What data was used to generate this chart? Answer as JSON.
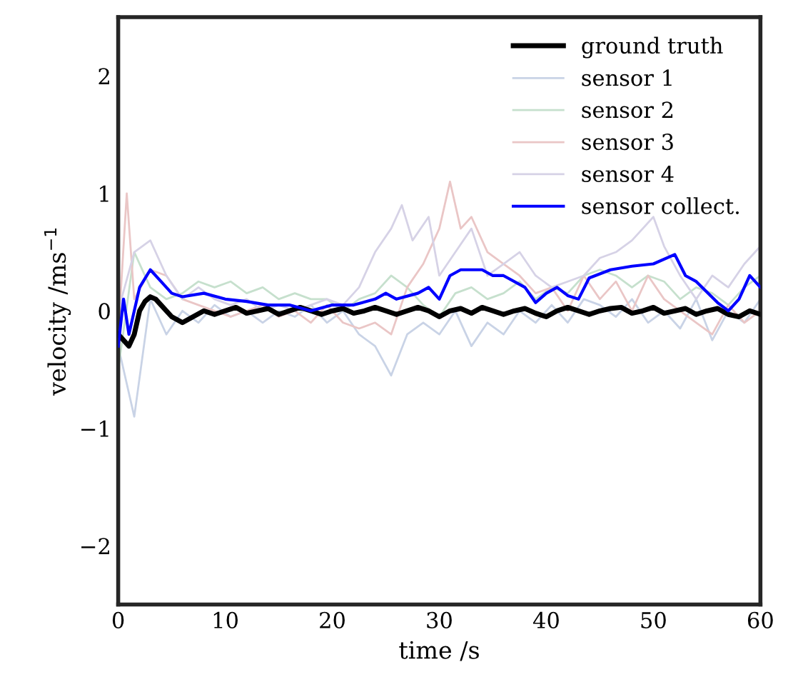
{
  "chart_data": {
    "type": "line",
    "xlabel": "time /s",
    "ylabel": "velocity /ms$^{−1}$",
    "xlim": [
      0,
      60
    ],
    "ylim": [
      -2.5,
      2.5
    ],
    "xticks": [
      0,
      10,
      20,
      30,
      40,
      50,
      60
    ],
    "yticks": [
      -2,
      -1,
      0,
      1,
      2
    ],
    "grid": false,
    "legend": "top right",
    "series": [
      {
        "name": "ground truth",
        "color": "#000000",
        "x": [
          0,
          0.5,
          1,
          1.5,
          2,
          2.5,
          3,
          3.5,
          4,
          5,
          6,
          7,
          8,
          9,
          10,
          11,
          12,
          13,
          14,
          15,
          16,
          17,
          18,
          19,
          20,
          21,
          22,
          23,
          24,
          25,
          26,
          27,
          28,
          29,
          30,
          31,
          32,
          33,
          34,
          35,
          36,
          37,
          38,
          39,
          40,
          41,
          42,
          43,
          44,
          45,
          46,
          47,
          48,
          49,
          50,
          51,
          52,
          53,
          54,
          55,
          56,
          57,
          58,
          59,
          60
        ],
        "values": [
          -0.2,
          -0.25,
          -0.3,
          -0.2,
          0.0,
          0.08,
          0.12,
          0.1,
          0.05,
          -0.05,
          -0.1,
          -0.05,
          0.0,
          -0.03,
          0.0,
          0.03,
          -0.02,
          0.0,
          0.02,
          -0.03,
          0.0,
          0.03,
          0.0,
          -0.03,
          0.0,
          0.02,
          -0.02,
          0.0,
          0.03,
          0.0,
          -0.03,
          0.0,
          0.03,
          0.0,
          -0.05,
          0.0,
          0.02,
          -0.02,
          0.03,
          0.0,
          -0.03,
          0.0,
          0.02,
          -0.02,
          -0.05,
          0.0,
          0.03,
          0.0,
          -0.03,
          0.0,
          0.02,
          0.03,
          -0.02,
          0.0,
          0.03,
          -0.02,
          0.0,
          0.02,
          -0.03,
          0.0,
          0.02,
          -0.03,
          -0.05,
          0.0,
          -0.03
        ]
      },
      {
        "name": "sensor 1",
        "color": "#c9d3e6",
        "x": [
          0,
          1.5,
          3,
          4.5,
          6,
          7.5,
          9,
          10.5,
          12,
          13.5,
          15,
          16.5,
          18,
          19.5,
          21,
          22.5,
          24,
          25.5,
          27,
          28.5,
          30,
          31.5,
          33,
          34.5,
          36,
          37.5,
          39,
          40.5,
          42,
          43.5,
          45,
          46.5,
          48,
          49.5,
          51,
          52.5,
          54,
          55.5,
          57,
          58.5,
          60
        ],
        "values": [
          -0.3,
          -0.9,
          0.1,
          -0.2,
          0.0,
          -0.1,
          0.05,
          -0.05,
          0.0,
          -0.1,
          0.0,
          -0.05,
          0.05,
          -0.1,
          0.0,
          -0.2,
          -0.3,
          -0.55,
          -0.2,
          -0.1,
          -0.2,
          0.0,
          -0.3,
          -0.1,
          -0.2,
          0.0,
          -0.1,
          0.05,
          -0.1,
          0.1,
          0.05,
          -0.05,
          0.1,
          -0.1,
          0.0,
          -0.15,
          0.1,
          -0.25,
          0.0,
          -0.1,
          0.1
        ]
      },
      {
        "name": "sensor 2",
        "color": "#c6e0cd",
        "x": [
          0,
          1.5,
          3,
          4.5,
          6,
          7.5,
          9,
          10.5,
          12,
          13.5,
          15,
          16.5,
          18,
          19.5,
          21,
          22.5,
          24,
          25.5,
          27,
          28.5,
          30,
          31.5,
          33,
          34.5,
          36,
          37.5,
          39,
          40.5,
          42,
          43.5,
          45,
          46.5,
          48,
          49.5,
          51,
          52.5,
          54,
          55.5,
          57,
          58.5,
          60
        ],
        "values": [
          -0.5,
          0.5,
          0.2,
          0.1,
          0.15,
          0.25,
          0.2,
          0.25,
          0.15,
          0.2,
          0.1,
          0.15,
          0.1,
          0.1,
          0.0,
          0.1,
          0.15,
          0.3,
          0.2,
          0.05,
          -0.05,
          0.15,
          0.2,
          0.1,
          0.15,
          0.25,
          0.1,
          0.2,
          0.15,
          0.3,
          0.35,
          0.3,
          0.2,
          0.3,
          0.25,
          0.1,
          0.2,
          0.15,
          0.05,
          0.2,
          0.3
        ]
      },
      {
        "name": "sensor 3",
        "color": "#eac6c6",
        "x": [
          0,
          0.8,
          1.5,
          3,
          4.5,
          6,
          7.5,
          9,
          10.5,
          12,
          13.5,
          15,
          16.5,
          18,
          19.5,
          21,
          22.5,
          24,
          25.5,
          27,
          28.5,
          30,
          31,
          32,
          33,
          34.5,
          36,
          37.5,
          39,
          40.5,
          42,
          43.5,
          45,
          46.5,
          48,
          49.5,
          51,
          52.5,
          54,
          55.5,
          57,
          58.5,
          60
        ],
        "values": [
          -0.2,
          1.0,
          0.1,
          0.35,
          0.3,
          0.1,
          0.05,
          0.0,
          -0.05,
          0.0,
          0.05,
          -0.05,
          0.0,
          -0.1,
          0.05,
          -0.1,
          -0.15,
          -0.1,
          -0.2,
          0.2,
          0.4,
          0.7,
          1.1,
          0.7,
          0.8,
          0.5,
          0.4,
          0.3,
          0.15,
          0.2,
          0.0,
          0.3,
          0.1,
          0.25,
          0.0,
          0.3,
          0.1,
          0.0,
          -0.1,
          -0.2,
          0.05,
          -0.1,
          0.0
        ]
      },
      {
        "name": "sensor 4",
        "color": "#d6d2e6",
        "x": [
          0,
          1.5,
          3,
          4.5,
          6,
          7.5,
          9,
          10.5,
          12,
          13.5,
          15,
          16.5,
          18,
          19.5,
          21,
          22.5,
          24,
          25.5,
          26.5,
          27.5,
          29,
          30,
          31.5,
          33,
          34.5,
          36,
          37.5,
          39,
          40.5,
          42,
          43.5,
          45,
          46.5,
          48,
          50,
          51,
          52.5,
          54,
          55.5,
          57,
          58.5,
          60
        ],
        "values": [
          0.0,
          0.5,
          0.6,
          0.3,
          0.1,
          0.2,
          0.1,
          0.05,
          0.1,
          0.0,
          0.05,
          0.0,
          0.05,
          0.1,
          0.05,
          0.2,
          0.5,
          0.7,
          0.9,
          0.6,
          0.8,
          0.3,
          0.5,
          0.7,
          0.3,
          0.4,
          0.5,
          0.3,
          0.2,
          0.25,
          0.3,
          0.45,
          0.5,
          0.6,
          0.8,
          0.55,
          0.3,
          0.1,
          0.3,
          0.2,
          0.4,
          0.55
        ]
      },
      {
        "name": "sensor collect.",
        "color": "#0000ff",
        "x": [
          0,
          0.5,
          1,
          2,
          3,
          4,
          5,
          6,
          8,
          10,
          12,
          14,
          16,
          18,
          20,
          22,
          24,
          25,
          26,
          28,
          29,
          30,
          31,
          32,
          33,
          34,
          35,
          36,
          38,
          39,
          40,
          41,
          42,
          43,
          44,
          46,
          48,
          50,
          52,
          53,
          54,
          56,
          57,
          58,
          59,
          60
        ],
        "values": [
          -0.3,
          0.1,
          -0.2,
          0.2,
          0.35,
          0.25,
          0.15,
          0.12,
          0.15,
          0.1,
          0.08,
          0.05,
          0.05,
          0.0,
          0.05,
          0.05,
          0.1,
          0.15,
          0.1,
          0.15,
          0.2,
          0.1,
          0.3,
          0.35,
          0.35,
          0.35,
          0.3,
          0.3,
          0.2,
          0.07,
          0.15,
          0.2,
          0.13,
          0.1,
          0.28,
          0.35,
          0.38,
          0.4,
          0.48,
          0.3,
          0.25,
          0.07,
          0.0,
          0.1,
          0.3,
          0.2
        ]
      }
    ]
  }
}
